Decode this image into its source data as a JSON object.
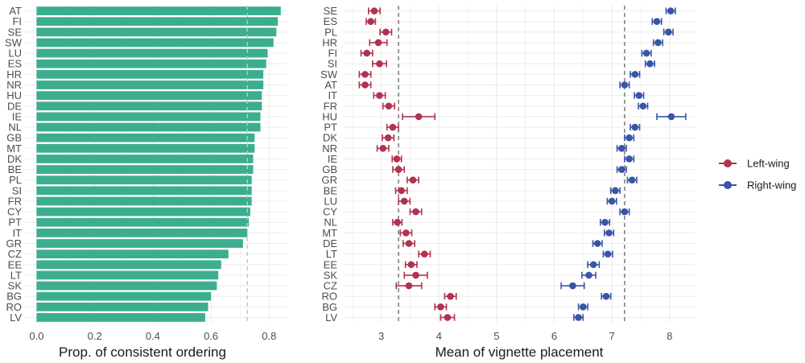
{
  "chart_data": [
    {
      "type": "bar",
      "orientation": "horizontal",
      "categories": [
        "AT",
        "FI",
        "SE",
        "SW",
        "LU",
        "ES",
        "HR",
        "NR",
        "HU",
        "DE",
        "IE",
        "NL",
        "GB",
        "MT",
        "DK",
        "BE",
        "PL",
        "SI",
        "FR",
        "CY",
        "PT",
        "IT",
        "GR",
        "CZ",
        "EE",
        "LT",
        "SK",
        "BG",
        "RO",
        "LV"
      ],
      "values": [
        0.84,
        0.83,
        0.825,
        0.815,
        0.795,
        0.79,
        0.78,
        0.78,
        0.775,
        0.775,
        0.77,
        0.77,
        0.75,
        0.75,
        0.745,
        0.745,
        0.74,
        0.74,
        0.74,
        0.735,
        0.73,
        0.725,
        0.71,
        0.66,
        0.635,
        0.625,
        0.62,
        0.6,
        0.59,
        0.58
      ],
      "xlabel": "Prop. of consistent ordering",
      "ylabel": "",
      "xlim": [
        -0.04,
        0.86
      ],
      "xticks": [
        0.0,
        0.2,
        0.4,
        0.6,
        0.8
      ],
      "xtick_labels": [
        "0.0",
        "0.2",
        "0.4",
        "0.6",
        "0.8"
      ],
      "reference_line": 0.725,
      "bar_color": "#3cae8f",
      "grid": true
    },
    {
      "type": "scatter",
      "style": "point-with-errorbars",
      "categories": [
        "SE",
        "ES",
        "PL",
        "HR",
        "FI",
        "SI",
        "SW",
        "AT",
        "IT",
        "FR",
        "HU",
        "PT",
        "DK",
        "NR",
        "IE",
        "GB",
        "GR",
        "BE",
        "LU",
        "CY",
        "NL",
        "MT",
        "DE",
        "LT",
        "EE",
        "SK",
        "CZ",
        "RO",
        "BG",
        "LV"
      ],
      "xlabel": "Mean of vignette placement",
      "ylabel": "",
      "xlim": [
        2.35,
        8.45
      ],
      "xticks": [
        3,
        4,
        5,
        6,
        7,
        8
      ],
      "xtick_labels": [
        "3",
        "4",
        "5",
        "6",
        "7",
        "8"
      ],
      "reference_lines": [
        3.3,
        7.22
      ],
      "grid": true,
      "series": [
        {
          "name": "Left-wing",
          "color": "#b0334f",
          "values": [
            2.88,
            2.82,
            3.08,
            2.95,
            2.75,
            2.97,
            2.72,
            2.72,
            2.97,
            3.13,
            3.65,
            3.2,
            3.12,
            3.03,
            3.27,
            3.3,
            3.55,
            3.35,
            3.4,
            3.6,
            3.28,
            3.43,
            3.48,
            3.75,
            3.52,
            3.6,
            3.48,
            4.2,
            4.03,
            4.15
          ],
          "errors": [
            0.1,
            0.08,
            0.1,
            0.15,
            0.1,
            0.12,
            0.1,
            0.1,
            0.1,
            0.1,
            0.28,
            0.1,
            0.1,
            0.1,
            0.08,
            0.1,
            0.1,
            0.1,
            0.1,
            0.1,
            0.08,
            0.1,
            0.1,
            0.1,
            0.1,
            0.2,
            0.22,
            0.1,
            0.1,
            0.12
          ]
        },
        {
          "name": "Right-wing",
          "color": "#3856a5",
          "values": [
            8.02,
            7.78,
            7.98,
            7.8,
            7.6,
            7.66,
            7.4,
            7.22,
            7.47,
            7.54,
            8.03,
            7.4,
            7.3,
            7.17,
            7.3,
            7.17,
            7.35,
            7.06,
            7.0,
            7.22,
            6.88,
            6.95,
            6.75,
            6.93,
            6.68,
            6.6,
            6.32,
            6.9,
            6.5,
            6.42
          ],
          "errors": [
            0.08,
            0.08,
            0.08,
            0.08,
            0.08,
            0.08,
            0.08,
            0.08,
            0.08,
            0.08,
            0.25,
            0.08,
            0.08,
            0.08,
            0.08,
            0.08,
            0.08,
            0.08,
            0.08,
            0.08,
            0.08,
            0.08,
            0.08,
            0.08,
            0.1,
            0.12,
            0.2,
            0.08,
            0.08,
            0.08
          ]
        }
      ],
      "legend": {
        "position": "right",
        "entries": [
          "Left-wing",
          "Right-wing"
        ]
      }
    }
  ]
}
